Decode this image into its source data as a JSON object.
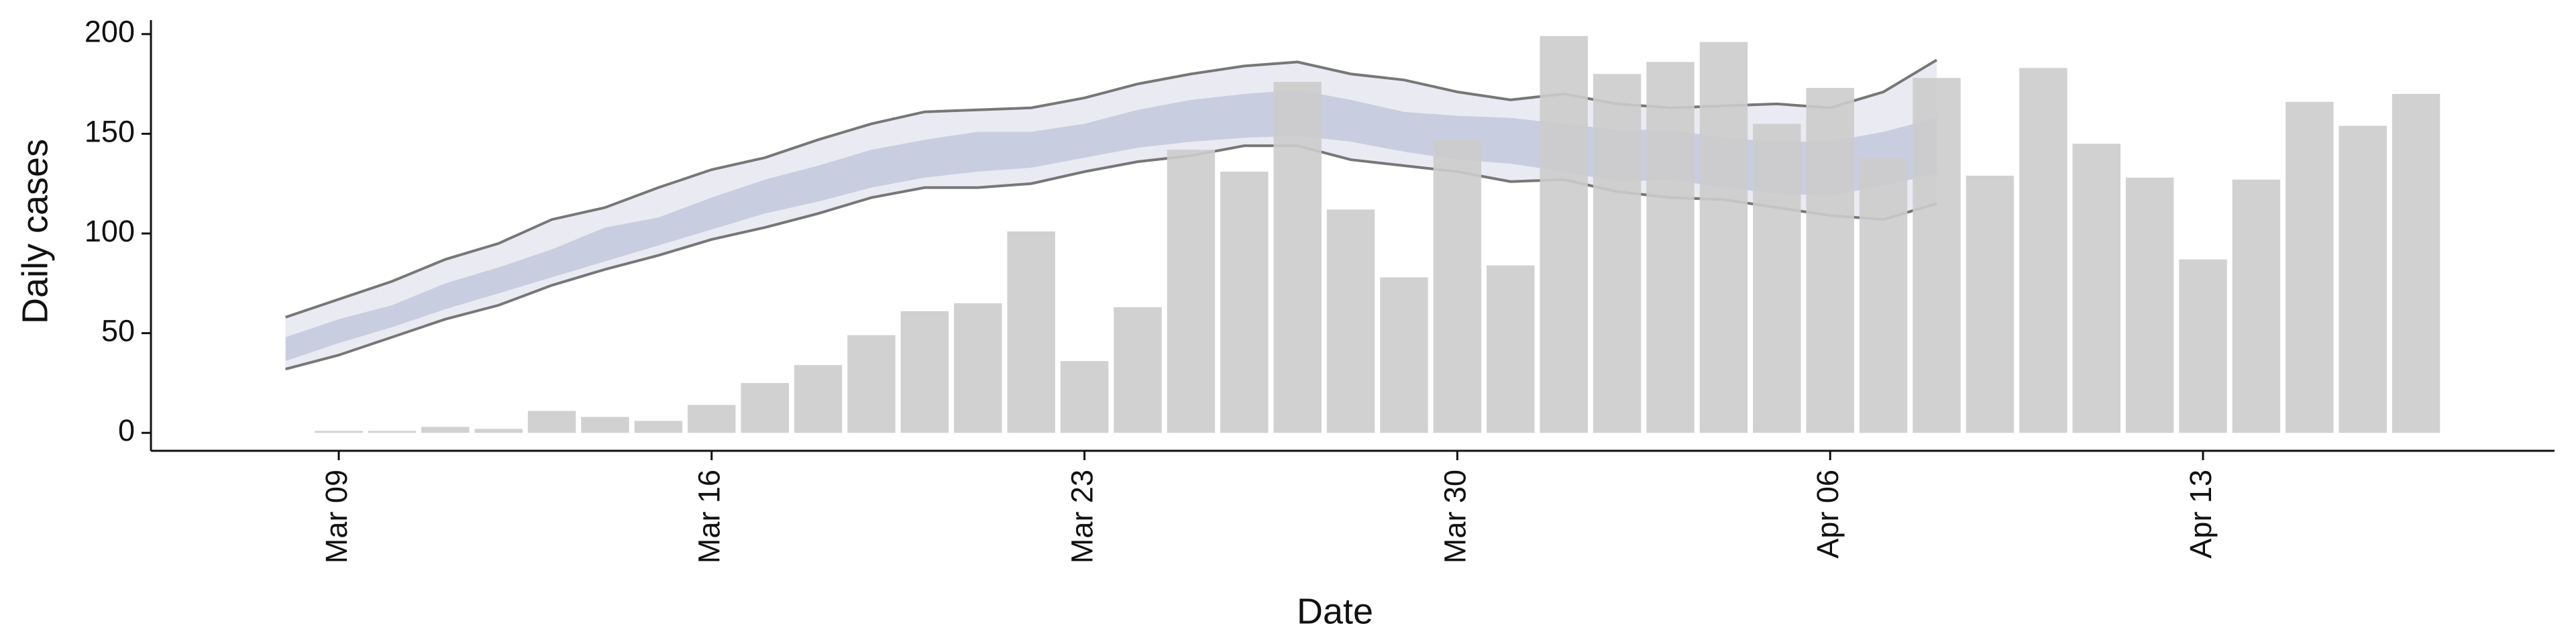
{
  "chart_data": {
    "type": "bar",
    "xlabel": "Date",
    "ylabel": "Daily cases",
    "categories": [
      "Mar 09",
      "Mar 10",
      "Mar 11",
      "Mar 12",
      "Mar 13",
      "Mar 14",
      "Mar 15",
      "Mar 16",
      "Mar 17",
      "Mar 18",
      "Mar 19",
      "Mar 20",
      "Mar 21",
      "Mar 22",
      "Mar 23",
      "Mar 24",
      "Mar 25",
      "Mar 26",
      "Mar 27",
      "Mar 28",
      "Mar 29",
      "Mar 30",
      "Mar 31",
      "Apr 01",
      "Apr 02",
      "Apr 03",
      "Apr 04",
      "Apr 05",
      "Apr 06",
      "Apr 07",
      "Apr 08",
      "Apr 09",
      "Apr 10",
      "Apr 11",
      "Apr 12",
      "Apr 13",
      "Apr 14",
      "Apr 15",
      "Apr 16",
      "Apr 17"
    ],
    "values": [
      1,
      1,
      3,
      2,
      11,
      8,
      6,
      14,
      25,
      34,
      49,
      61,
      65,
      101,
      36,
      63,
      142,
      131,
      176,
      112,
      78,
      147,
      84,
      199,
      180,
      186,
      196,
      155,
      173,
      138,
      178,
      129,
      183,
      145,
      128,
      87,
      127,
      166,
      154,
      170
    ],
    "color": "#cccccc",
    "ribbon": {
      "x": [
        "Mar 08",
        "Mar 09",
        "Mar 10",
        "Mar 11",
        "Mar 12",
        "Mar 13",
        "Mar 14",
        "Mar 15",
        "Mar 16",
        "Mar 17",
        "Mar 18",
        "Mar 19",
        "Mar 20",
        "Mar 21",
        "Mar 22",
        "Mar 23",
        "Mar 24",
        "Mar 25",
        "Mar 26",
        "Mar 27",
        "Mar 28",
        "Mar 29",
        "Mar 30",
        "Mar 31",
        "Apr 01",
        "Apr 02",
        "Apr 03",
        "Apr 04",
        "Apr 05",
        "Apr 06",
        "Apr 07",
        "Apr 08"
      ],
      "outer_upper": [
        58,
        67,
        76,
        87,
        95,
        107,
        113,
        123,
        132,
        138,
        147,
        155,
        161,
        162,
        163,
        168,
        175,
        180,
        184,
        186,
        180,
        177,
        171,
        167,
        170,
        165,
        163,
        164,
        165,
        163,
        171,
        187
      ],
      "outer_lower": [
        32,
        39,
        48,
        57,
        64,
        74,
        82,
        89,
        97,
        103,
        110,
        118,
        123,
        123,
        125,
        131,
        136,
        139,
        144,
        144,
        137,
        134,
        131,
        126,
        127,
        121,
        118,
        117,
        113,
        109,
        107,
        115
      ],
      "inner_upper": [
        48,
        57,
        64,
        75,
        83,
        92,
        103,
        108,
        118,
        127,
        134,
        142,
        147,
        151,
        151,
        155,
        162,
        167,
        170,
        172,
        167,
        161,
        159,
        158,
        155,
        152,
        152,
        148,
        146,
        146,
        151,
        158
      ],
      "inner_lower": [
        36,
        45,
        53,
        62,
        70,
        78,
        86,
        94,
        102,
        110,
        116,
        123,
        128,
        131,
        133,
        138,
        143,
        146,
        148,
        149,
        146,
        141,
        137,
        135,
        131,
        126,
        127,
        123,
        120,
        119,
        124,
        130
      ],
      "outer_color": "#e6e7f0",
      "inner_color": "#c3c8dd",
      "line_color": "#777777"
    },
    "xticks": [
      "Mar 09",
      "Mar 16",
      "Mar 23",
      "Mar 30",
      "Apr 06",
      "Apr 13"
    ],
    "ylim": [
      -9,
      207
    ],
    "yticks": [
      0,
      50,
      100,
      150,
      200
    ]
  }
}
